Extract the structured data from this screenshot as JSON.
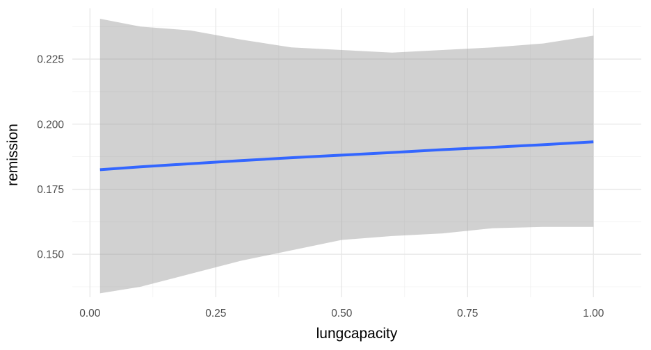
{
  "chart_data": {
    "type": "line",
    "xlabel": "lungcapacity",
    "ylabel": "remission",
    "xlim": [
      -0.035,
      1.095
    ],
    "ylim": [
      0.1335,
      0.2445
    ],
    "x_ticks": [
      0.0,
      0.25,
      0.5,
      0.75,
      1.0
    ],
    "x_tick_labels": [
      "0.00",
      "0.25",
      "0.50",
      "0.75",
      "1.00"
    ],
    "y_ticks": [
      0.15,
      0.175,
      0.2,
      0.225
    ],
    "y_tick_labels": [
      "0.150",
      "0.175",
      "0.200",
      "0.225"
    ],
    "grid": true,
    "legend": "none",
    "colors": {
      "line": "#3366ff",
      "ribbon": "#999999"
    },
    "series": [
      {
        "x": [
          0.02,
          0.1,
          0.2,
          0.3,
          0.4,
          0.5,
          0.6,
          0.7,
          0.8,
          0.9,
          1.0
        ],
        "y": [
          0.1825,
          0.1836,
          0.1848,
          0.186,
          0.1871,
          0.1881,
          0.1891,
          0.1902,
          0.1911,
          0.1921,
          0.1932
        ],
        "ymin": [
          0.135,
          0.1375,
          0.1425,
          0.1475,
          0.1515,
          0.1555,
          0.157,
          0.158,
          0.16,
          0.1605,
          0.1605
        ],
        "ymax": [
          0.2405,
          0.2375,
          0.236,
          0.2325,
          0.2295,
          0.2285,
          0.2275,
          0.2285,
          0.2295,
          0.231,
          0.234
        ]
      }
    ]
  }
}
